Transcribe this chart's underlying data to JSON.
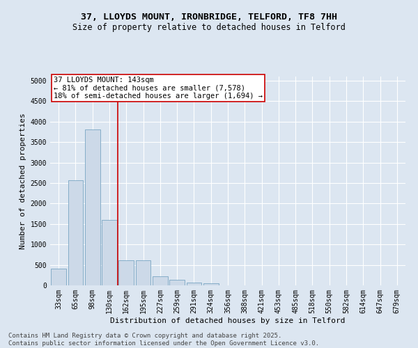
{
  "title_line1": "37, LLOYDS MOUNT, IRONBRIDGE, TELFORD, TF8 7HH",
  "title_line2": "Size of property relative to detached houses in Telford",
  "xlabel": "Distribution of detached houses by size in Telford",
  "ylabel": "Number of detached properties",
  "categories": [
    "33sqm",
    "65sqm",
    "98sqm",
    "130sqm",
    "162sqm",
    "195sqm",
    "227sqm",
    "259sqm",
    "291sqm",
    "324sqm",
    "356sqm",
    "388sqm",
    "421sqm",
    "453sqm",
    "485sqm",
    "518sqm",
    "550sqm",
    "582sqm",
    "614sqm",
    "647sqm",
    "679sqm"
  ],
  "values": [
    400,
    2570,
    3800,
    1600,
    620,
    620,
    220,
    130,
    70,
    50,
    0,
    0,
    0,
    0,
    0,
    0,
    0,
    0,
    0,
    0,
    0
  ],
  "bar_color": "#ccd9e8",
  "bar_edge_color": "#6699bb",
  "bar_linewidth": 0.5,
  "vline_x_index": 3,
  "vline_color": "#cc0000",
  "vline_linewidth": 1.2,
  "annotation_line1": "37 LLOYDS MOUNT: 143sqm",
  "annotation_line2": "← 81% of detached houses are smaller (7,578)",
  "annotation_line3": "18% of semi-detached houses are larger (1,694) →",
  "annotation_box_color": "#ffffff",
  "annotation_box_edge_color": "#cc0000",
  "ylim": [
    0,
    5100
  ],
  "yticks": [
    0,
    500,
    1000,
    1500,
    2000,
    2500,
    3000,
    3500,
    4000,
    4500,
    5000
  ],
  "background_color": "#dce6f1",
  "plot_bg_color": "#dce6f1",
  "footer_line1": "Contains HM Land Registry data © Crown copyright and database right 2025.",
  "footer_line2": "Contains public sector information licensed under the Open Government Licence v3.0.",
  "title_fontsize": 9.5,
  "subtitle_fontsize": 8.5,
  "axis_label_fontsize": 8,
  "tick_fontsize": 7,
  "annotation_fontsize": 7.5,
  "footer_fontsize": 6.5
}
